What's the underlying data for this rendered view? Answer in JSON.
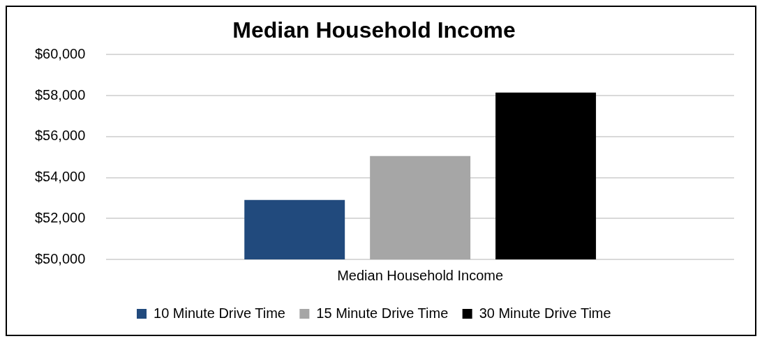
{
  "chart_data": {
    "type": "bar",
    "title": "Median Household Income",
    "categories": [
      "Median Household Income"
    ],
    "series": [
      {
        "name": "10 Minute Drive Time",
        "color": "#214a7d",
        "values": [
          52900
        ]
      },
      {
        "name": "15 Minute Drive Time",
        "color": "#a6a6a6",
        "values": [
          55050
        ]
      },
      {
        "name": "30 Minute Drive Time",
        "color": "#000000",
        "values": [
          58150
        ]
      }
    ],
    "ylim": [
      50000,
      60000
    ],
    "yticks": [
      {
        "value": 50000,
        "label": "$50,000"
      },
      {
        "value": 52000,
        "label": "$52,000"
      },
      {
        "value": 54000,
        "label": "$54,000"
      },
      {
        "value": 56000,
        "label": "$56,000"
      },
      {
        "value": 58000,
        "label": "$58,000"
      },
      {
        "value": 60000,
        "label": "$60,000"
      }
    ],
    "grid": "y",
    "legend": "bottom"
  }
}
